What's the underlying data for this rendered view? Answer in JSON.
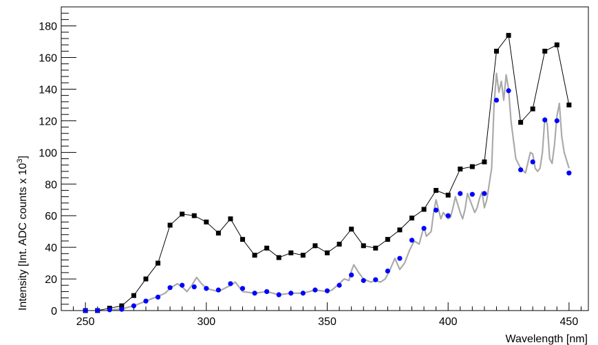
{
  "chart_data": {
    "type": "line",
    "xlabel": "Wavelength [nm]",
    "ylabel_main": "Intensity [Int. ADC counts x 10",
    "ylabel_sup": "3",
    "ylabel_end": "]",
    "xlim": [
      240,
      458
    ],
    "ylim": [
      0,
      192
    ],
    "x_ticks": [
      250,
      300,
      350,
      400,
      450
    ],
    "y_ticks": [
      0,
      20,
      40,
      60,
      80,
      100,
      120,
      140,
      160,
      180
    ],
    "grid": false,
    "colors": {
      "black_series": "#000000",
      "blue_series": "#0000ff",
      "gray_line": "#aaaaaa"
    },
    "series": [
      {
        "marker": "square",
        "x": [
          250,
          255,
          260,
          265,
          270,
          275,
          280,
          285,
          290,
          295,
          300,
          305,
          310,
          315,
          320,
          325,
          330,
          335,
          340,
          345,
          350,
          355,
          360,
          365,
          370,
          375,
          380,
          385,
          390,
          395,
          400,
          405,
          410,
          415,
          420,
          425,
          430,
          435,
          440,
          445,
          450
        ],
        "values": [
          0,
          0,
          1.5,
          3,
          9.5,
          20,
          30,
          54,
          61,
          60,
          56,
          49,
          58,
          45,
          35,
          39.5,
          33.5,
          36.5,
          35,
          41,
          36.5,
          42,
          51.5,
          41,
          39.5,
          45,
          51,
          58.5,
          64,
          76,
          73,
          89.5,
          91,
          94,
          164,
          174,
          119,
          127.5,
          164,
          168,
          130
        ]
      },
      {
        "marker": "circle",
        "x": [
          250,
          255,
          260,
          265,
          270,
          275,
          280,
          285,
          290,
          295,
          300,
          305,
          310,
          315,
          320,
          325,
          330,
          335,
          340,
          345,
          350,
          355,
          360,
          365,
          370,
          375,
          380,
          385,
          390,
          395,
          400,
          405,
          410,
          415,
          420,
          425,
          430,
          435,
          440,
          445,
          450
        ],
        "values": [
          0,
          0,
          0.5,
          0.8,
          3,
          6,
          8.5,
          14.5,
          16,
          15,
          14,
          13,
          17,
          14,
          11,
          12,
          10,
          11,
          11,
          13,
          12.5,
          16,
          22.5,
          19,
          19.5,
          25,
          33,
          44.5,
          52,
          63.5,
          60,
          74,
          73.5,
          74,
          133,
          139,
          89,
          94,
          120.5,
          120,
          87
        ]
      },
      {
        "marker": "none",
        "x": [
          260,
          265,
          270,
          275,
          280,
          283,
          285,
          288,
          290,
          292,
          294,
          296,
          298,
          300,
          305,
          310,
          312,
          315,
          320,
          325,
          330,
          335,
          340,
          345,
          350,
          352,
          355,
          357,
          359,
          360,
          361,
          363,
          365,
          368,
          370,
          372,
          374,
          376,
          378,
          380,
          382,
          384,
          386,
          388,
          390,
          391,
          393,
          394,
          395,
          397,
          398,
          400,
          401,
          402,
          403,
          405,
          406,
          407,
          408,
          410,
          411,
          412,
          413,
          414,
          415,
          416,
          418,
          419,
          420,
          421,
          422,
          423,
          424,
          425,
          426,
          428,
          430,
          432,
          434,
          435,
          436,
          437,
          438,
          439,
          440,
          441,
          442,
          443,
          444,
          445,
          446,
          447,
          448,
          450
        ],
        "values": [
          0.5,
          1,
          3,
          6,
          9,
          11,
          14,
          17,
          15,
          12,
          16,
          21,
          17,
          14,
          12,
          16,
          18,
          12,
          11,
          12,
          10,
          11,
          11,
          13,
          12,
          13,
          17,
          20,
          19,
          25,
          29,
          24,
          20,
          18,
          19,
          18,
          20,
          26,
          33,
          26,
          30,
          38,
          44,
          42,
          53,
          47,
          50,
          62,
          70,
          58,
          62,
          58,
          59,
          65,
          72,
          62,
          58,
          64,
          74,
          66,
          62,
          65,
          71,
          75,
          65,
          70,
          90,
          130,
          150,
          138,
          145,
          133,
          149,
          140,
          120,
          96,
          90,
          87,
          100,
          99,
          90,
          88,
          90,
          100,
          122,
          118,
          96,
          93,
          105,
          123,
          131,
          110,
          100,
          90
        ]
      }
    ]
  }
}
